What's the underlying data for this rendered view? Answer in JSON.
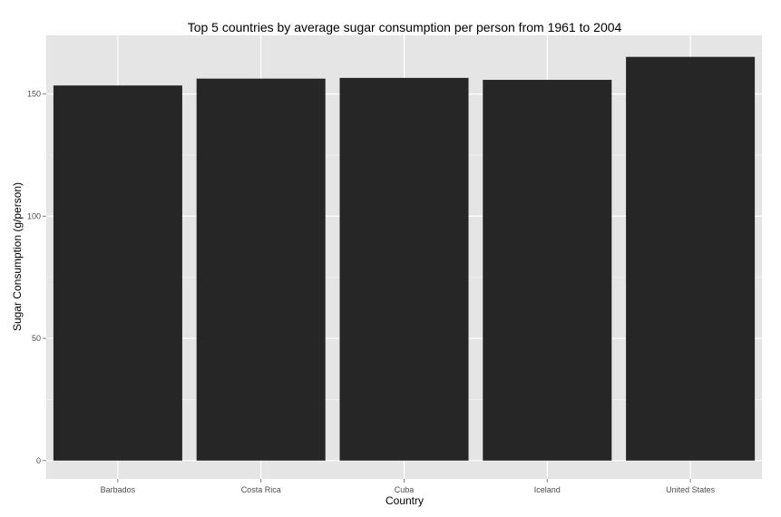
{
  "chart_data": {
    "type": "bar",
    "title": "Top 5 countries by average sugar consumption per person from 1961 to 2004",
    "xlabel": "Country",
    "ylabel": "Sugar Consumption (g/person)",
    "categories": [
      "Barbados",
      "Costa Rica",
      "Cuba",
      "Iceland",
      "United States"
    ],
    "values": [
      153.5,
      156.3,
      156.6,
      155.8,
      165.2
    ],
    "ylim": [
      -7.5,
      174
    ],
    "yticks": [
      0,
      50,
      100,
      150
    ],
    "ytick_labels": [
      "0",
      "50",
      "100",
      "150"
    ],
    "grid": true,
    "legend": "none",
    "colors": {
      "bar": "#262626",
      "panel": "#e5e5e5",
      "grid_major": "#ffffff",
      "grid_minor": "#f2f2f2",
      "tick_text": "#4d4d4d"
    }
  }
}
